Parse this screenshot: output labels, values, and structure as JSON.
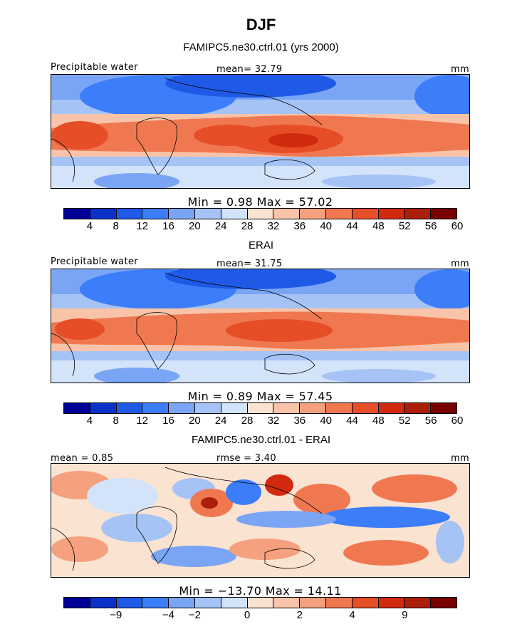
{
  "figure": {
    "title": "DJF"
  },
  "chart_data": [
    {
      "type": "heatmap",
      "title": "FAMIPC5.ne30.ctrl.01 (yrs 2000)",
      "variable_label": "Precipitable water",
      "stat_label": "mean=  32.79",
      "units": "mm",
      "minmax_label": "Min =    0.98 Max =   57.02",
      "colorbar": {
        "colors": [
          "#000096",
          "#0a32c8",
          "#1e5ae6",
          "#3c7dfa",
          "#7aa5f5",
          "#a5c3f5",
          "#d2e3fa",
          "#fbe3d1",
          "#f9c3a9",
          "#f5a07e",
          "#f07850",
          "#e64e28",
          "#d22a0f",
          "#aa1e0a",
          "#780000"
        ],
        "ticks": [
          "4",
          "8",
          "12",
          "16",
          "20",
          "24",
          "28",
          "32",
          "36",
          "40",
          "44",
          "48",
          "52",
          "56",
          "60"
        ]
      }
    },
    {
      "type": "heatmap",
      "title": "ERAI",
      "variable_label": "Precipitable water",
      "stat_label": "mean=  31.75",
      "units": "mm",
      "minmax_label": "Min =    0.89 Max =   57.45",
      "colorbar": {
        "colors": [
          "#000096",
          "#0a32c8",
          "#1e5ae6",
          "#3c7dfa",
          "#7aa5f5",
          "#a5c3f5",
          "#d2e3fa",
          "#fbe3d1",
          "#f9c3a9",
          "#f5a07e",
          "#f07850",
          "#e64e28",
          "#d22a0f",
          "#aa1e0a",
          "#780000"
        ],
        "ticks": [
          "4",
          "8",
          "12",
          "16",
          "20",
          "24",
          "28",
          "32",
          "36",
          "40",
          "44",
          "48",
          "52",
          "56",
          "60"
        ]
      }
    },
    {
      "type": "heatmap",
      "title": "FAMIPC5.ne30.ctrl.01 - ERAI",
      "mean_label": "mean =    0.85",
      "stat_label": "rmse =    3.40",
      "units": "mm",
      "minmax_label": "Min = −13.70 Max =   14.11",
      "colorbar": {
        "colors": [
          "#000096",
          "#0a32c8",
          "#1e5ae6",
          "#3c7dfa",
          "#7aa5f5",
          "#a5c3f5",
          "#d2e3fa",
          "#fbe3d1",
          "#f9c3a9",
          "#f5a07e",
          "#f07850",
          "#e64e28",
          "#d22a0f",
          "#aa1e0a",
          "#780000"
        ],
        "ticks": [
          "−9",
          "−4",
          "−2",
          "0",
          "2",
          "4",
          "9"
        ]
      }
    }
  ]
}
